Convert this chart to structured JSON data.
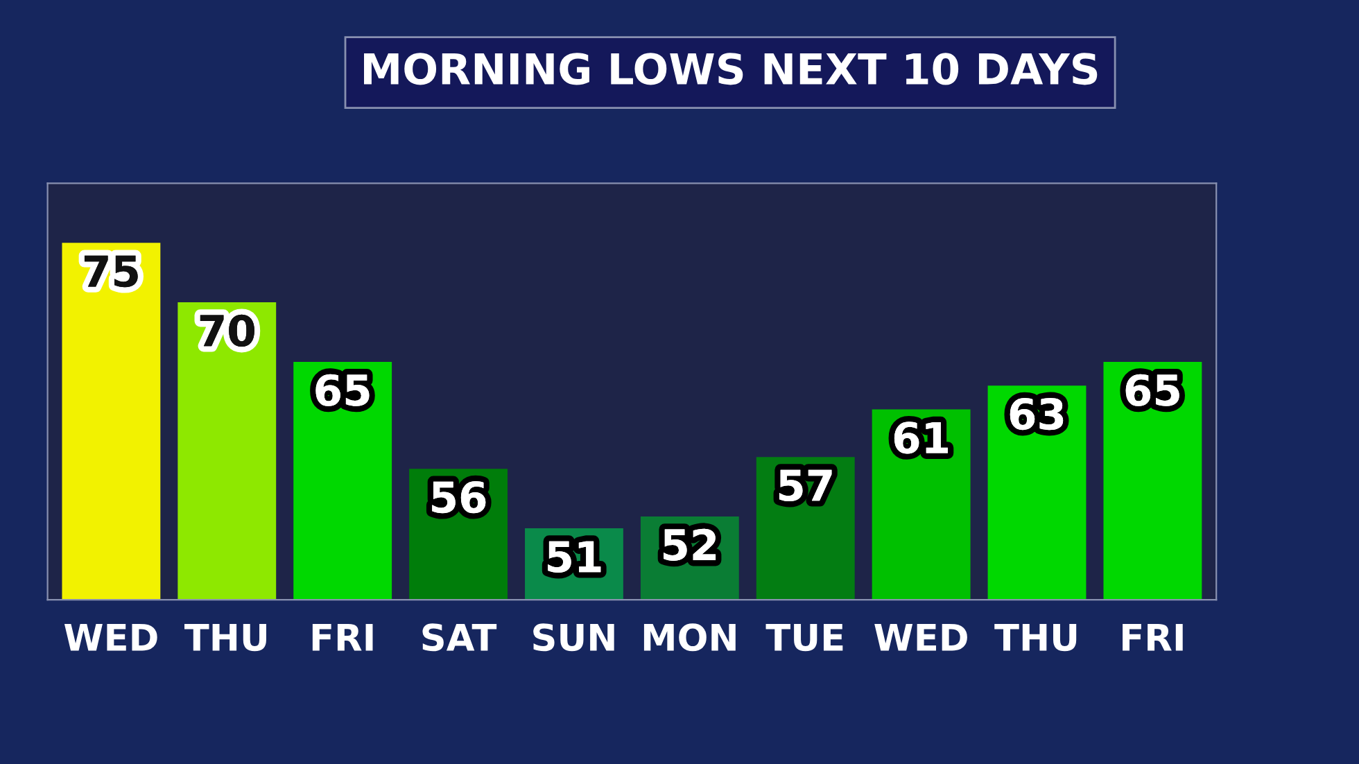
{
  "chart_data": {
    "type": "bar",
    "title": "MORNING LOWS NEXT 10 DAYS",
    "categories": [
      "WED",
      "THU",
      "FRI",
      "SAT",
      "SUN",
      "MON",
      "TUE",
      "WED",
      "THU",
      "FRI"
    ],
    "values": [
      75,
      70,
      65,
      56,
      51,
      52,
      57,
      61,
      63,
      65
    ],
    "colors": [
      "#f2f200",
      "#8ee800",
      "#00d800",
      "#007d0a",
      "#0a8a4a",
      "#0a7d34",
      "#037d12",
      "#00c000",
      "#00d800",
      "#00d800"
    ],
    "ylim": [
      45,
      80
    ],
    "tick_labels": "x",
    "data_labels": true,
    "grid": false
  }
}
